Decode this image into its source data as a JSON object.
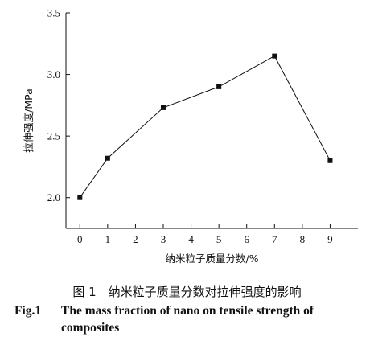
{
  "chart_data": {
    "type": "line",
    "x": [
      0,
      1,
      3,
      5,
      7,
      9
    ],
    "values": [
      2.0,
      2.32,
      2.73,
      2.9,
      3.15,
      2.3
    ],
    "xlabel": "纳米粒子质量分数/%",
    "ylabel": "拉伸强度/MPa",
    "xlim": [
      -0.5,
      10
    ],
    "ylim": [
      1.75,
      3.5
    ],
    "xticks": [
      0,
      1,
      2,
      3,
      4,
      5,
      6,
      7,
      8,
      9
    ],
    "yticks": [
      2.0,
      2.5,
      3.0,
      3.5
    ],
    "xtick_labels": [
      "0",
      "1",
      "2",
      "3",
      "4",
      "5",
      "6",
      "7",
      "8",
      "9"
    ],
    "ytick_labels": [
      "2.0",
      "2.5",
      "3.0",
      "3.5"
    ],
    "grid": false,
    "marker": "square"
  },
  "caption": {
    "cn": "图 1　纳米粒子质量分数对拉伸强度的影响",
    "en_label": "Fig.1",
    "en_line1": "The mass fraction of nano on tensile strength of",
    "en_line2": "composites"
  }
}
